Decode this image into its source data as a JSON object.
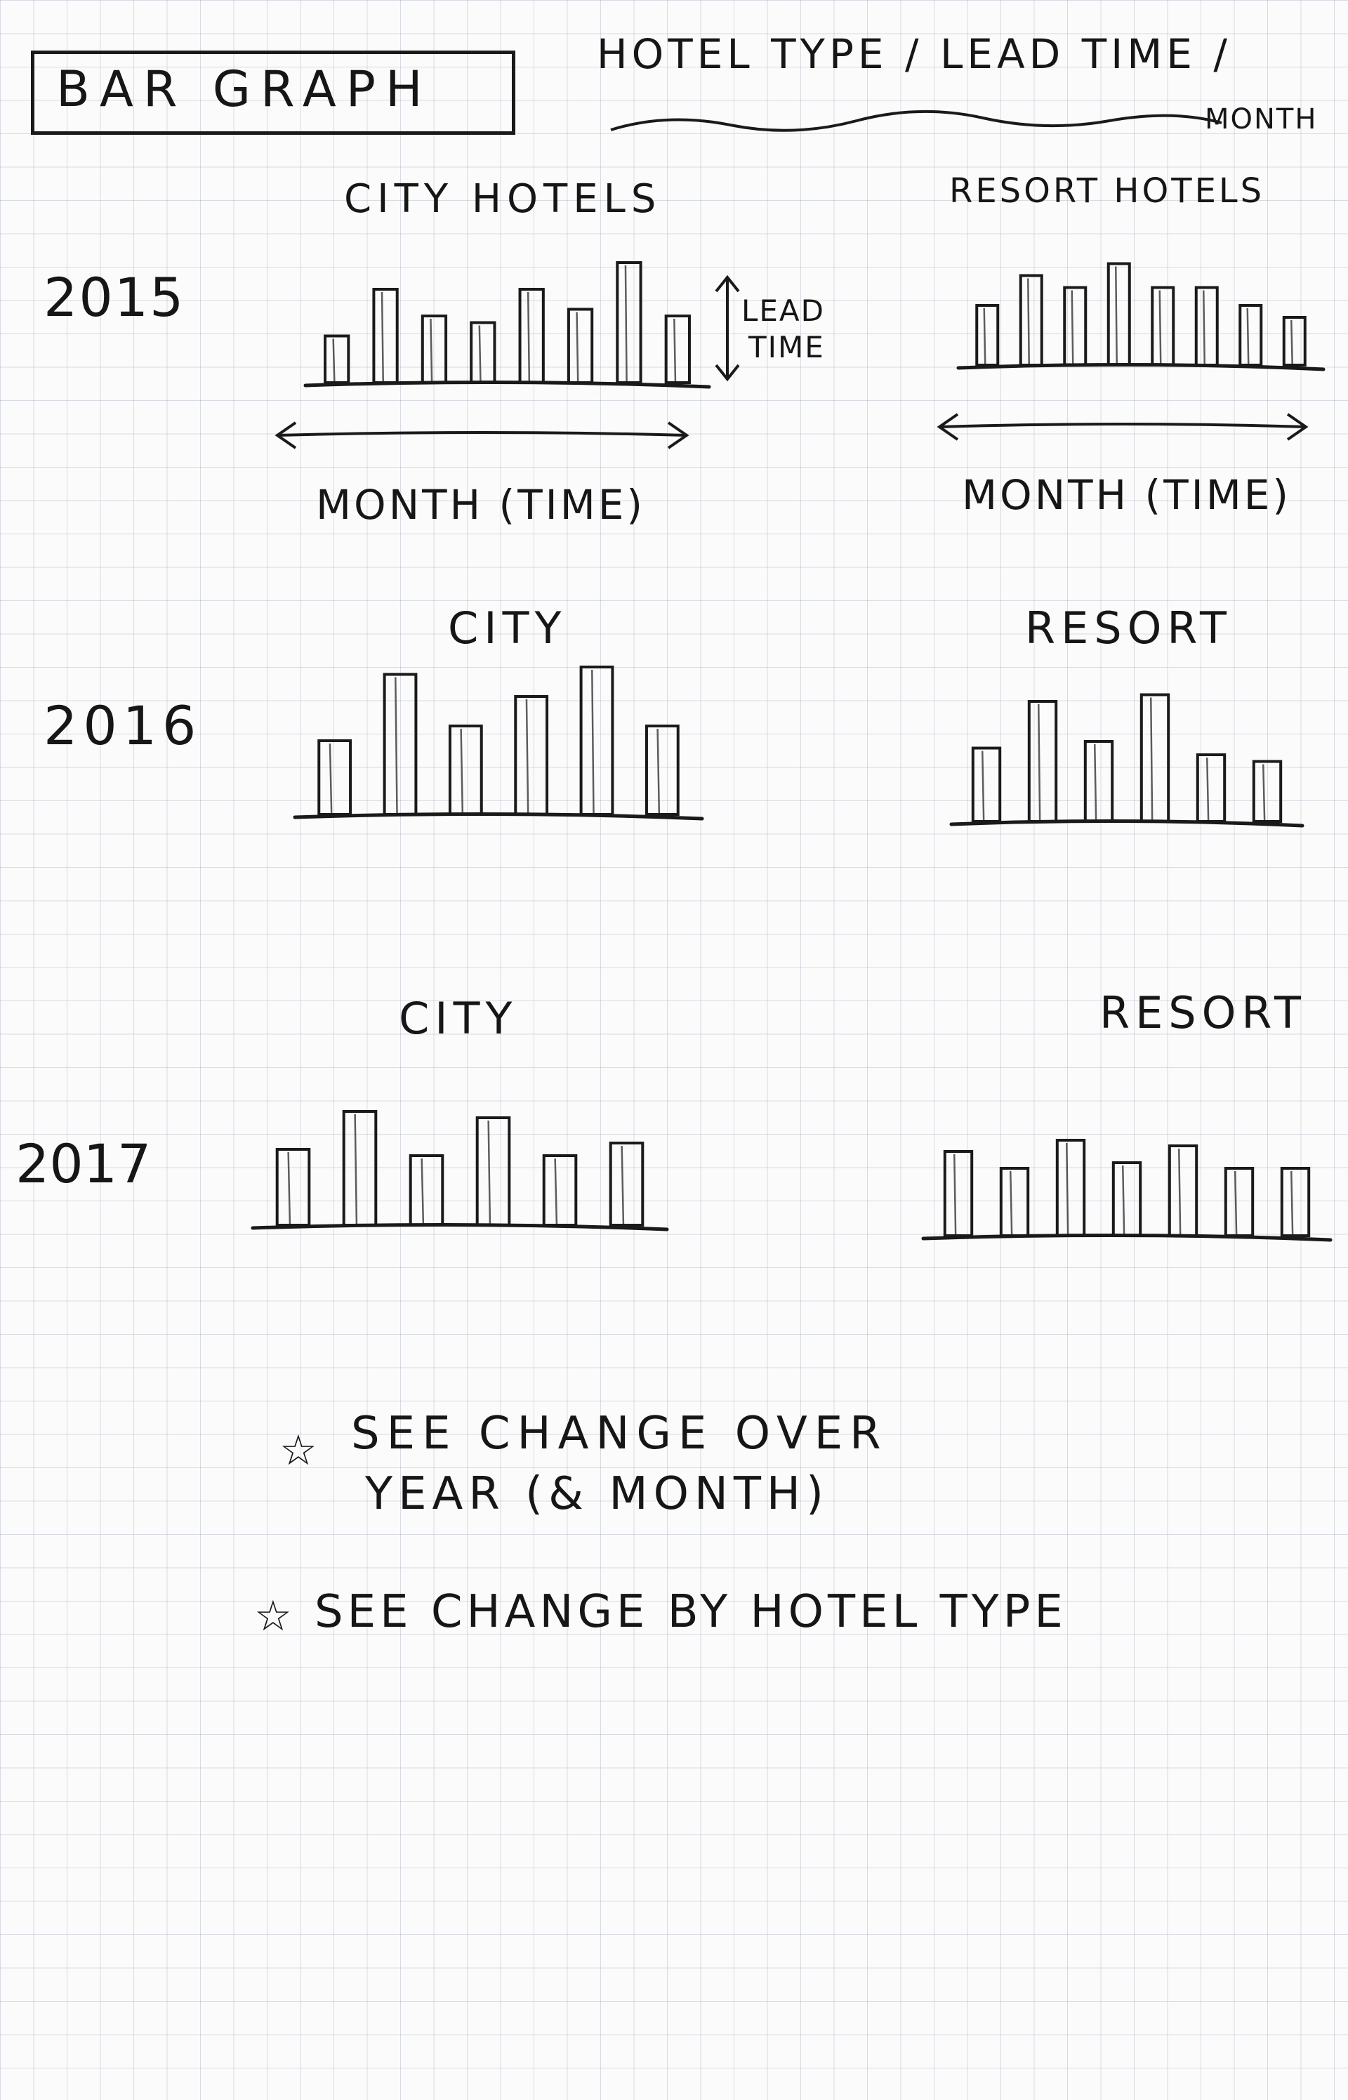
{
  "title": "BAR GRAPH",
  "subtitle_line1": "HOTEL TYPE / LEAD TIME /",
  "subtitle_line2": "MONTH",
  "lead_time_label_1": "LEAD",
  "lead_time_label_2": "TIME",
  "notes": [
    "SEE CHANGE OVER",
    "YEAR (& MONTH)",
    "SEE CHANGE BY HOTEL TYPE"
  ],
  "chart_data": [
    {
      "type": "bar",
      "year": "2015",
      "panel_title": "CITY HOTELS",
      "xlabel": "MONTH (TIME)",
      "ylabel": "LEAD TIME",
      "values": [
        0.35,
        0.7,
        0.5,
        0.45,
        0.7,
        0.55,
        0.9,
        0.5
      ]
    },
    {
      "type": "bar",
      "year": "2015",
      "panel_title": "RESORT HOTELS",
      "xlabel": "MONTH (TIME)",
      "values": [
        0.5,
        0.75,
        0.65,
        0.85,
        0.65,
        0.65,
        0.5,
        0.4
      ]
    },
    {
      "type": "bar",
      "year": "2016",
      "panel_title": "CITY",
      "values": [
        0.5,
        0.95,
        0.6,
        0.8,
        1.0,
        0.6
      ]
    },
    {
      "type": "bar",
      "year": "2016",
      "panel_title": "RESORT",
      "values": [
        0.55,
        0.9,
        0.6,
        0.95,
        0.5,
        0.45
      ]
    },
    {
      "type": "bar",
      "year": "2017",
      "panel_title": "CITY",
      "values": [
        0.6,
        0.9,
        0.55,
        0.85,
        0.55,
        0.65
      ]
    },
    {
      "type": "bar",
      "year": "2017",
      "panel_title": "RESORT",
      "values": [
        0.75,
        0.6,
        0.85,
        0.65,
        0.8,
        0.6,
        0.6
      ]
    }
  ]
}
